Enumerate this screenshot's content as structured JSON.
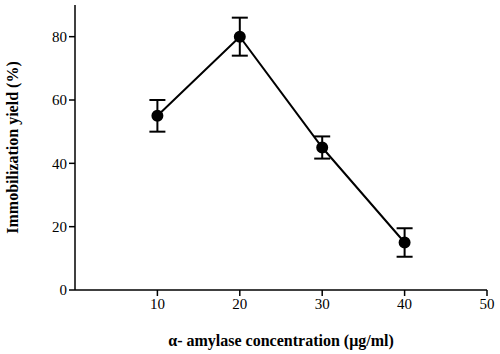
{
  "chart_data": {
    "type": "line",
    "x": [
      10,
      20,
      30,
      40
    ],
    "values": [
      55,
      80,
      45,
      15
    ],
    "errors": [
      5,
      6,
      3.5,
      4.5
    ],
    "color": "#000000",
    "marker": "circle",
    "xlabel": "α- amylase concentration (μg/ml)",
    "ylabel": "Immobilization yield (%)",
    "xlim": [
      0,
      50
    ],
    "xticks": [
      10,
      20,
      30,
      40,
      50
    ],
    "ylim": [
      0,
      90
    ],
    "yticks": [
      0,
      20,
      40,
      60,
      80
    ],
    "grid": false
  }
}
